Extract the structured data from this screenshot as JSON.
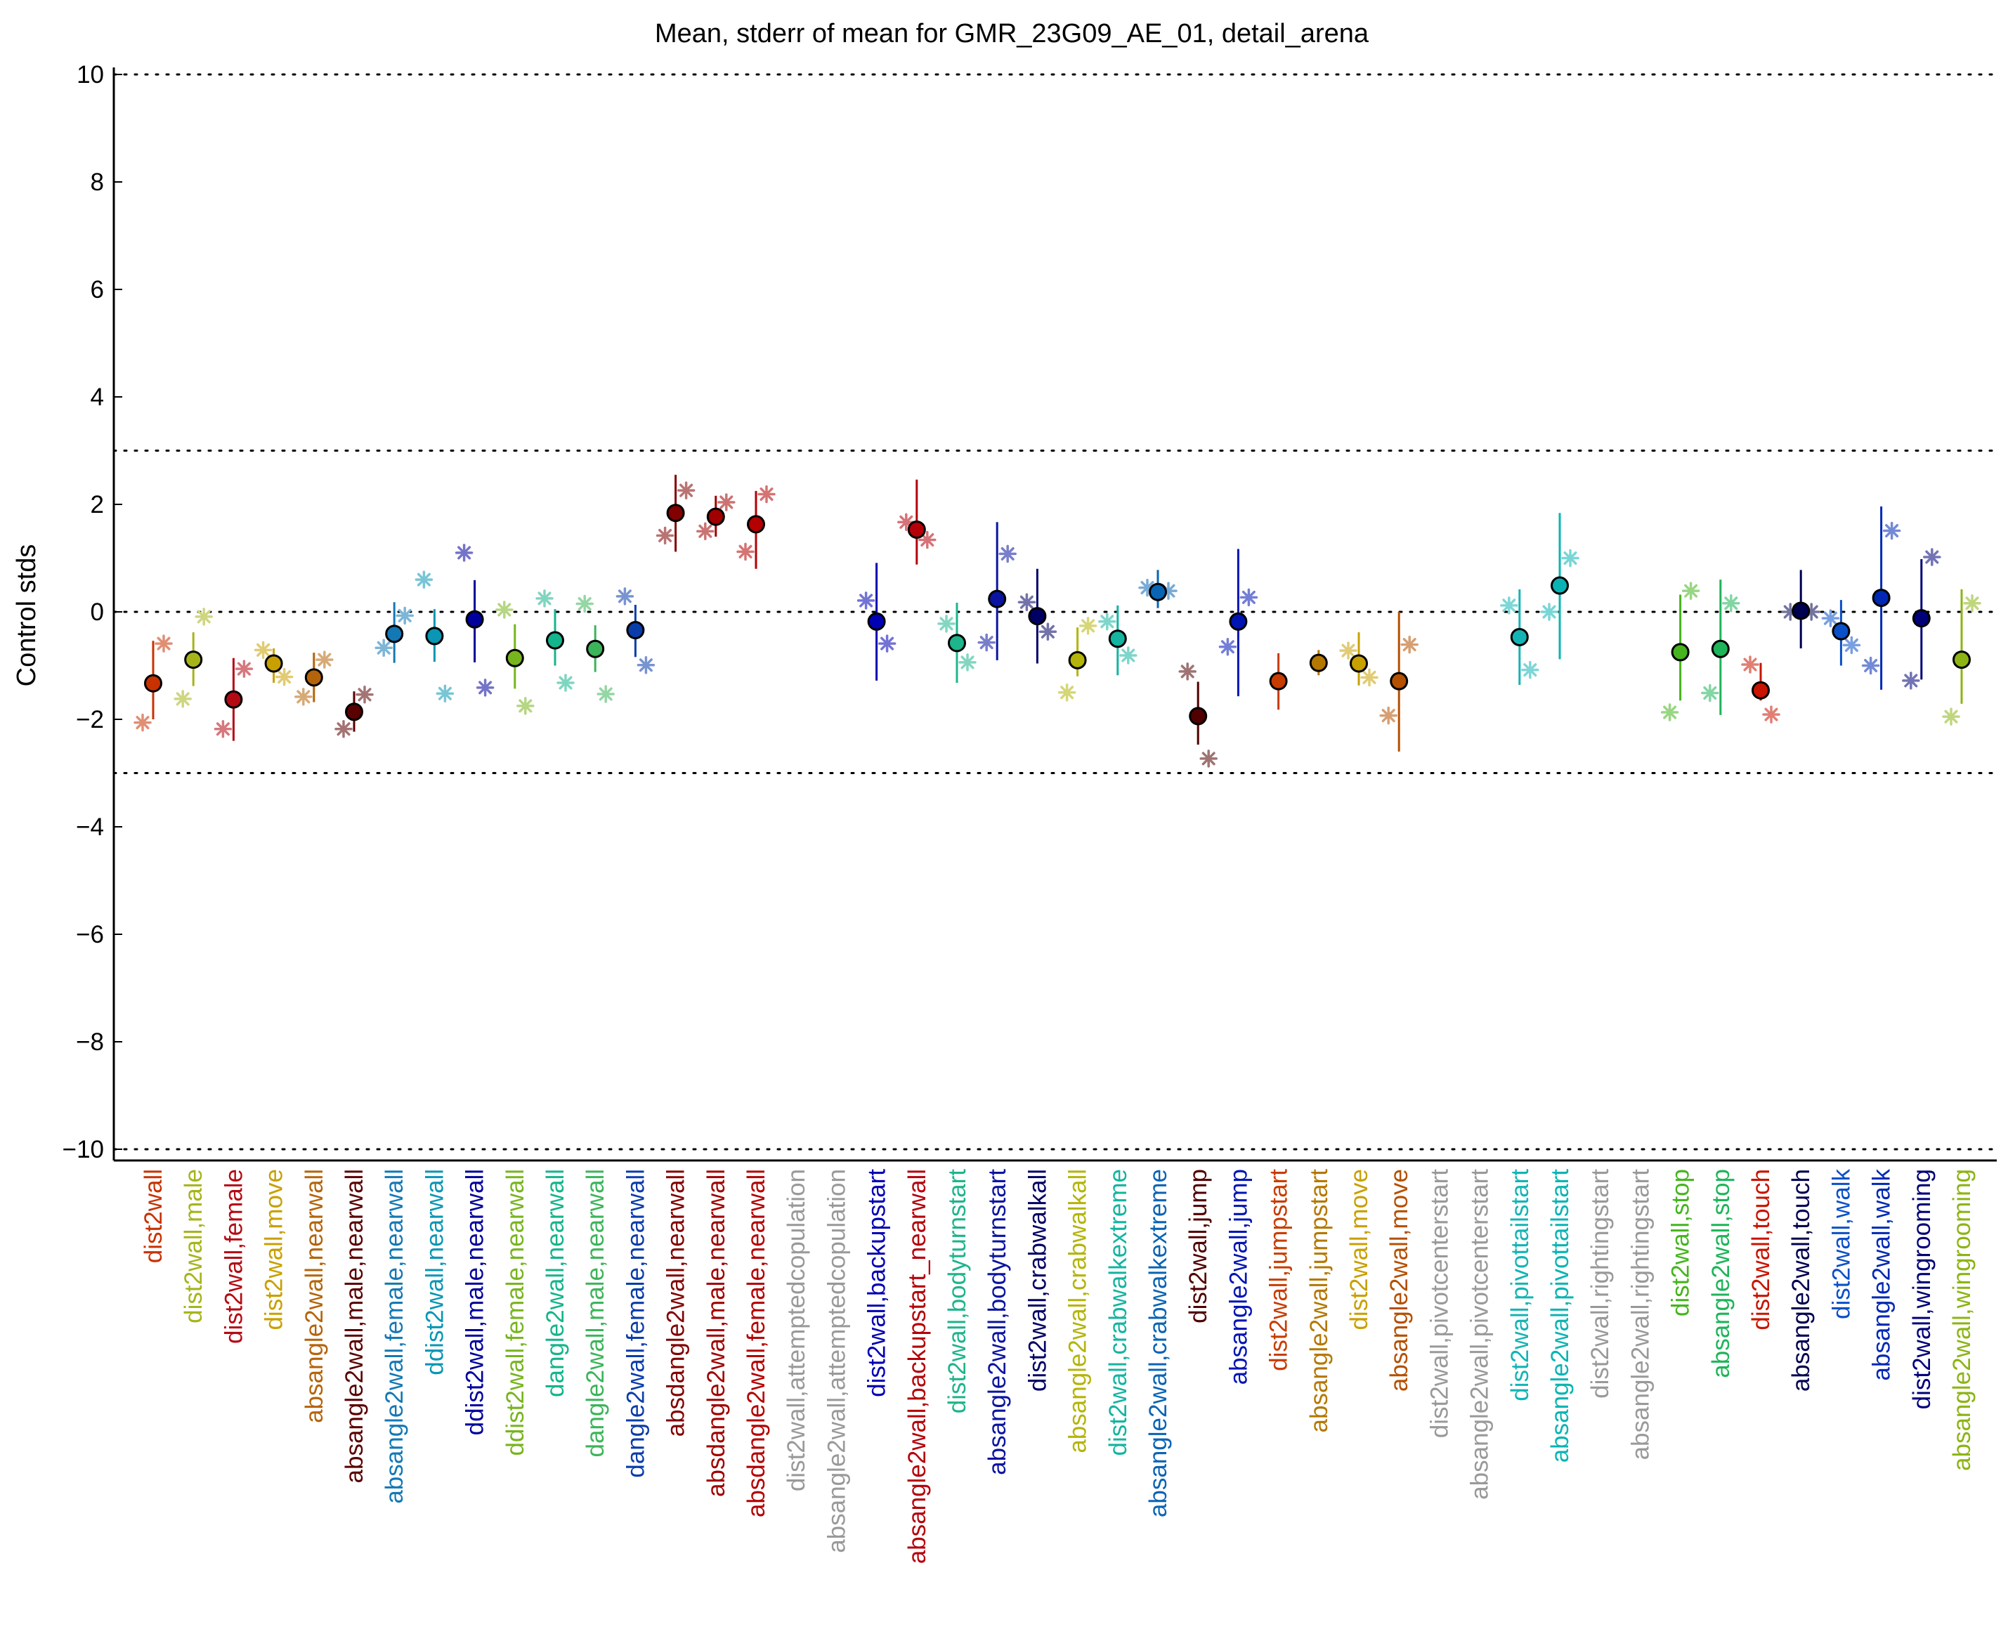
{
  "chart_data": {
    "type": "scatter",
    "title": "Mean, stderr of mean for GMR_23G09_AE_01, detail_arena",
    "ylabel": "Control stds",
    "xlabel": "",
    "ylim": [
      -10,
      10
    ],
    "yticks": [
      "−10",
      "−8",
      "−6",
      "−4",
      "−2",
      "0",
      "2",
      "4",
      "6",
      "8",
      "10"
    ],
    "reference_lines": [
      -10,
      -3,
      0,
      3,
      10
    ],
    "grid": false,
    "categories": [
      "dist2wall",
      "dist2wall,male",
      "dist2wall,female",
      "dist2wall,move",
      "absangle2wall,nearwall",
      "absangle2wall,male,nearwall",
      "absangle2wall,female,nearwall",
      "ddist2wall,nearwall",
      "ddist2wall,male,nearwall",
      "ddist2wall,female,nearwall",
      "dangle2wall,nearwall",
      "dangle2wall,male,nearwall",
      "dangle2wall,female,nearwall",
      "absdangle2wall,nearwall",
      "absdangle2wall,male,nearwall",
      "absdangle2wall,female,nearwall",
      "dist2wall,attemptedcopulation",
      "absangle2wall,attemptedcopulation",
      "dist2wall,backupstart",
      "absangle2wall,backupstart_nearwall",
      "dist2wall,bodyturnstart",
      "absangle2wall,bodyturnstart",
      "dist2wall,crabwalkall",
      "absangle2wall,crabwalkall",
      "dist2wall,crabwalkextreme",
      "absangle2wall,crabwalkextreme",
      "dist2wall,jump",
      "absangle2wall,jump",
      "dist2wall,jumpstart",
      "absangle2wall,jumpstart",
      "dist2wall,move",
      "absangle2wall,move",
      "dist2wall,pivotcenterstart",
      "absangle2wall,pivotcenterstart",
      "dist2wall,pivottailstart",
      "absangle2wall,pivottailstart",
      "dist2wall,rightingstart",
      "absangle2wall,rightingstart",
      "dist2wall,stop",
      "absangle2wall,stop",
      "dist2wall,touch",
      "absangle2wall,touch",
      "dist2wall,walk",
      "absangle2wall,walk",
      "dist2wall,wingrooming",
      "absangle2wall,wingrooming"
    ],
    "colors": [
      "#c83200",
      "#a6b41a",
      "#b40a14",
      "#c8a000",
      "#b4640a",
      "#5a0000",
      "#1478b4",
      "#0a96b4",
      "#00009c",
      "#78b41e",
      "#14b48c",
      "#3cb45a",
      "#0a3caa",
      "#820000",
      "#a00000",
      "#b40000",
      "#999999",
      "#999999",
      "#0000b4",
      "#b4000a",
      "#1eb48c",
      "#0a14a0",
      "#000064",
      "#b4b40a",
      "#14b4a0",
      "#0a64b4",
      "#500000",
      "#0014b4",
      "#c83c00",
      "#b47800",
      "#c8a000",
      "#b45000",
      "#999999",
      "#999999",
      "#14b4b4",
      "#0ab4b4",
      "#999999",
      "#999999",
      "#46b41e",
      "#1eb45a",
      "#c81400",
      "#000050",
      "#0a50c8",
      "#0028b4",
      "#000078",
      "#8cb414"
    ],
    "series": [
      {
        "marker": "filled circle",
        "values": [
          -1.33,
          -0.89,
          -1.63,
          -0.96,
          -1.22,
          -1.86,
          -0.41,
          -0.45,
          -0.14,
          -0.86,
          -0.53,
          -0.69,
          -0.34,
          1.84,
          1.77,
          1.63,
          null,
          null,
          -0.18,
          1.53,
          -0.58,
          0.24,
          -0.08,
          -0.9,
          -0.5,
          0.37,
          -1.94,
          -0.18,
          -1.29,
          -0.95,
          -0.96,
          -1.29,
          null,
          null,
          -0.47,
          0.49,
          null,
          null,
          -0.75,
          -0.69,
          -1.46,
          0.02,
          -0.36,
          0.26,
          -0.12,
          -0.89
        ],
        "err_low": [
          -2.0,
          -1.38,
          -2.4,
          -1.32,
          -1.68,
          -2.23,
          -0.95,
          -0.93,
          -0.94,
          -1.43,
          -1.0,
          -1.12,
          -0.84,
          1.12,
          1.4,
          0.8,
          null,
          null,
          -1.28,
          0.88,
          -1.32,
          -0.9,
          -0.96,
          -1.2,
          -1.18,
          0.07,
          -2.47,
          -1.57,
          -1.82,
          -1.18,
          -1.37,
          -2.6,
          null,
          null,
          -1.36,
          -0.88,
          null,
          null,
          -1.65,
          -1.92,
          -1.65,
          -0.68,
          -1.0,
          -1.45,
          -1.26,
          -1.71
        ],
        "err_high": [
          -0.54,
          -0.38,
          -0.86,
          -0.68,
          -0.76,
          -1.48,
          0.18,
          0.05,
          0.59,
          -0.23,
          0.05,
          -0.25,
          0.13,
          2.55,
          2.16,
          2.25,
          null,
          null,
          0.91,
          2.46,
          0.17,
          1.67,
          0.8,
          -0.29,
          0.12,
          0.78,
          -1.3,
          1.17,
          -0.77,
          -0.71,
          -0.38,
          0.0,
          null,
          null,
          0.42,
          1.84,
          null,
          null,
          0.32,
          0.6,
          -0.95,
          0.78,
          0.22,
          1.96,
          0.98,
          0.42
        ]
      },
      {
        "marker": "asterisk (left)",
        "values": [
          -2.06,
          -1.62,
          -2.18,
          -0.71,
          -1.58,
          -2.18,
          -0.67,
          0.6,
          1.1,
          0.04,
          0.25,
          0.15,
          0.29,
          1.42,
          1.5,
          1.12,
          null,
          null,
          0.21,
          1.67,
          -0.22,
          -0.57,
          0.18,
          -1.5,
          -0.18,
          0.45,
          -1.11,
          -0.65,
          null,
          null,
          -0.72,
          -1.93,
          null,
          null,
          0.12,
          0.0,
          null,
          null,
          -1.87,
          -1.51,
          -0.98,
          0.0,
          -0.12,
          -1.0,
          -1.28,
          -1.95
        ]
      },
      {
        "marker": "asterisk (right)",
        "values": [
          -0.59,
          -0.09,
          -1.06,
          -1.21,
          -0.89,
          -1.54,
          -0.07,
          -1.52,
          -1.41,
          -1.75,
          -1.32,
          -1.53,
          -0.99,
          2.26,
          2.04,
          2.19,
          null,
          null,
          -0.59,
          1.34,
          -0.94,
          1.08,
          -0.37,
          -0.26,
          -0.81,
          0.39,
          -2.73,
          0.27,
          null,
          null,
          -1.22,
          -0.61,
          null,
          null,
          -1.08,
          1.0,
          null,
          null,
          0.39,
          0.16,
          -1.91,
          0.0,
          -0.62,
          1.51,
          1.02,
          0.16
        ]
      }
    ]
  }
}
